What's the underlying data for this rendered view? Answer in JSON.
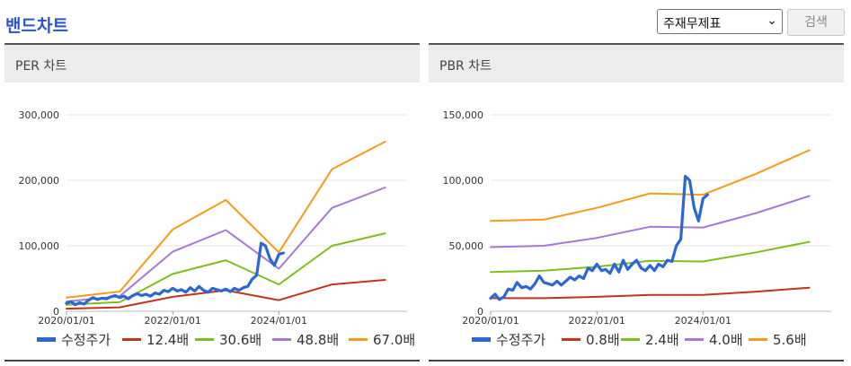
{
  "header": {
    "title": "밴드차트"
  },
  "controls": {
    "select_value": "주재무제표",
    "select_arrow": "⌄",
    "search_label": "검색"
  },
  "panels": [
    {
      "title": "PER 차트"
    },
    {
      "title": "PBR 차트"
    }
  ],
  "chart_data": [
    {
      "type": "line",
      "title": "PER 차트",
      "x_axis": {
        "type": "date",
        "min": "2020/01/01",
        "max": "2026/06/01",
        "tick_labels": [
          "2020/01/01",
          "2022/01/01",
          "2024/01/01"
        ]
      },
      "y_axis": {
        "min": 0,
        "max": 300000,
        "tick_values": [
          0,
          100000,
          200000,
          300000
        ],
        "tick_labels": [
          "0",
          "100,000",
          "200,000",
          "300,000"
        ]
      },
      "grid": "horizontal",
      "legend_position": "bottom",
      "series": [
        {
          "name": "수정주가",
          "color": "#2a66d6",
          "points": [
            [
              "2020/01/01",
              12000
            ],
            [
              "2020/02/01",
              15000
            ],
            [
              "2020/03/01",
              10000
            ],
            [
              "2020/04/01",
              13000
            ],
            [
              "2020/05/01",
              11000
            ],
            [
              "2020/06/01",
              17000
            ],
            [
              "2020/07/01",
              21000
            ],
            [
              "2020/08/01",
              18000
            ],
            [
              "2020/09/01",
              20000
            ],
            [
              "2020/10/01",
              19000
            ],
            [
              "2020/11/01",
              22000
            ],
            [
              "2020/12/01",
              24000
            ],
            [
              "2021/01/01",
              21000
            ],
            [
              "2021/02/01",
              23000
            ],
            [
              "2021/03/01",
              19000
            ],
            [
              "2021/04/01",
              24000
            ],
            [
              "2021/05/01",
              27000
            ],
            [
              "2021/06/01",
              24000
            ],
            [
              "2021/07/01",
              26000
            ],
            [
              "2021/08/01",
              23000
            ],
            [
              "2021/09/01",
              28000
            ],
            [
              "2021/10/01",
              26000
            ],
            [
              "2021/11/01",
              32000
            ],
            [
              "2021/12/01",
              30000
            ],
            [
              "2022/01/01",
              35000
            ],
            [
              "2022/02/01",
              31000
            ],
            [
              "2022/03/01",
              33000
            ],
            [
              "2022/04/01",
              29000
            ],
            [
              "2022/05/01",
              36000
            ],
            [
              "2022/06/01",
              31000
            ],
            [
              "2022/07/01",
              38000
            ],
            [
              "2022/08/01",
              32000
            ],
            [
              "2022/09/01",
              29000
            ],
            [
              "2022/10/01",
              35000
            ],
            [
              "2022/11/01",
              33000
            ],
            [
              "2022/12/01",
              31000
            ],
            [
              "2023/01/01",
              34000
            ],
            [
              "2023/02/01",
              30000
            ],
            [
              "2023/03/01",
              35000
            ],
            [
              "2023/04/01",
              32000
            ],
            [
              "2023/05/01",
              36000
            ],
            [
              "2023/06/01",
              38000
            ],
            [
              "2023/07/01",
              49000
            ],
            [
              "2023/08/01",
              55000
            ],
            [
              "2023/09/01",
              104000
            ],
            [
              "2023/10/01",
              100000
            ],
            [
              "2023/11/01",
              80000
            ],
            [
              "2023/12/01",
              70000
            ],
            [
              "2024/01/01",
              87000
            ],
            [
              "2024/02/01",
              89000
            ]
          ]
        },
        {
          "name": "12.4배",
          "color": "#c0341d",
          "points": [
            [
              "2020/01/01",
              4000
            ],
            [
              "2021/01/01",
              6000
            ],
            [
              "2022/01/01",
              22000
            ],
            [
              "2023/01/01",
              32000
            ],
            [
              "2024/01/01",
              17000
            ],
            [
              "2025/01/01",
              41000
            ],
            [
              "2026/01/01",
              48000
            ]
          ]
        },
        {
          "name": "30.6배",
          "color": "#7cbf1e",
          "points": [
            [
              "2020/01/01",
              10000
            ],
            [
              "2021/01/01",
              14000
            ],
            [
              "2022/01/01",
              57000
            ],
            [
              "2023/01/01",
              78000
            ],
            [
              "2024/01/01",
              41000
            ],
            [
              "2025/01/01",
              100000
            ],
            [
              "2026/01/01",
              119000
            ]
          ]
        },
        {
          "name": "48.8배",
          "color": "#a579d6",
          "points": [
            [
              "2020/01/01",
              15000
            ],
            [
              "2021/01/01",
              23000
            ],
            [
              "2022/01/01",
              91000
            ],
            [
              "2023/01/01",
              124000
            ],
            [
              "2024/01/01",
              65000
            ],
            [
              "2025/01/01",
              158000
            ],
            [
              "2026/01/01",
              189000
            ]
          ]
        },
        {
          "name": "67.0배",
          "color": "#f59b1b",
          "points": [
            [
              "2020/01/01",
              21000
            ],
            [
              "2021/01/01",
              30000
            ],
            [
              "2022/01/01",
              125000
            ],
            [
              "2023/01/01",
              170000
            ],
            [
              "2024/01/01",
              90000
            ],
            [
              "2025/01/01",
              217000
            ],
            [
              "2026/01/01",
              259000
            ]
          ]
        }
      ]
    },
    {
      "type": "line",
      "title": "PBR 차트",
      "x_axis": {
        "type": "date",
        "min": "2020/01/01",
        "max": "2026/06/01",
        "tick_labels": [
          "2020/01/01",
          "2022/01/01",
          "2024/01/01"
        ]
      },
      "y_axis": {
        "min": 0,
        "max": 150000,
        "tick_values": [
          0,
          50000,
          100000,
          150000
        ],
        "tick_labels": [
          "0",
          "50,000",
          "100,000",
          "150,000"
        ]
      },
      "grid": "horizontal",
      "legend_position": "bottom",
      "series": [
        {
          "name": "수정주가",
          "color": "#2a66d6",
          "points": [
            [
              "2020/01/01",
              10000
            ],
            [
              "2020/02/01",
              13000
            ],
            [
              "2020/03/01",
              9000
            ],
            [
              "2020/04/01",
              11000
            ],
            [
              "2020/05/01",
              17000
            ],
            [
              "2020/06/01",
              16000
            ],
            [
              "2020/07/01",
              22000
            ],
            [
              "2020/08/01",
              18000
            ],
            [
              "2020/09/01",
              19000
            ],
            [
              "2020/10/01",
              17000
            ],
            [
              "2020/11/01",
              21000
            ],
            [
              "2020/12/01",
              27000
            ],
            [
              "2021/01/01",
              22000
            ],
            [
              "2021/02/01",
              21000
            ],
            [
              "2021/03/01",
              20000
            ],
            [
              "2021/04/01",
              23000
            ],
            [
              "2021/05/01",
              20000
            ],
            [
              "2021/06/01",
              23000
            ],
            [
              "2021/07/01",
              26000
            ],
            [
              "2021/08/01",
              24000
            ],
            [
              "2021/09/01",
              27000
            ],
            [
              "2021/10/01",
              25000
            ],
            [
              "2021/11/01",
              33000
            ],
            [
              "2021/12/01",
              31000
            ],
            [
              "2022/01/01",
              36000
            ],
            [
              "2022/02/01",
              31000
            ],
            [
              "2022/03/01",
              32000
            ],
            [
              "2022/04/01",
              29000
            ],
            [
              "2022/05/01",
              36000
            ],
            [
              "2022/06/01",
              30000
            ],
            [
              "2022/07/01",
              39000
            ],
            [
              "2022/08/01",
              32000
            ],
            [
              "2022/09/01",
              36000
            ],
            [
              "2022/10/01",
              39000
            ],
            [
              "2022/11/01",
              33000
            ],
            [
              "2022/12/01",
              31000
            ],
            [
              "2023/01/01",
              35000
            ],
            [
              "2023/02/01",
              31000
            ],
            [
              "2023/03/01",
              36000
            ],
            [
              "2023/04/01",
              34000
            ],
            [
              "2023/05/01",
              39000
            ],
            [
              "2023/06/01",
              38000
            ],
            [
              "2023/07/01",
              50000
            ],
            [
              "2023/08/01",
              55000
            ],
            [
              "2023/09/01",
              103000
            ],
            [
              "2023/10/01",
              100000
            ],
            [
              "2023/11/01",
              79000
            ],
            [
              "2023/12/01",
              69000
            ],
            [
              "2024/01/01",
              86000
            ],
            [
              "2024/02/01",
              89000
            ]
          ]
        },
        {
          "name": "0.8배",
          "color": "#c0341d",
          "points": [
            [
              "2020/01/01",
              10000
            ],
            [
              "2021/01/01",
              10000
            ],
            [
              "2022/01/01",
              11000
            ],
            [
              "2023/01/01",
              12500
            ],
            [
              "2024/01/01",
              12500
            ],
            [
              "2025/01/01",
              15000
            ],
            [
              "2026/01/01",
              18000
            ]
          ]
        },
        {
          "name": "2.4배",
          "color": "#7cbf1e",
          "points": [
            [
              "2020/01/01",
              30000
            ],
            [
              "2021/01/01",
              31000
            ],
            [
              "2022/01/01",
              34000
            ],
            [
              "2023/01/01",
              38500
            ],
            [
              "2024/01/01",
              38000
            ],
            [
              "2025/01/01",
              45000
            ],
            [
              "2026/01/01",
              53000
            ]
          ]
        },
        {
          "name": "4.0배",
          "color": "#a579d6",
          "points": [
            [
              "2020/01/01",
              49000
            ],
            [
              "2021/01/01",
              50000
            ],
            [
              "2022/01/01",
              56000
            ],
            [
              "2023/01/01",
              64500
            ],
            [
              "2024/01/01",
              64000
            ],
            [
              "2025/01/01",
              75000
            ],
            [
              "2026/01/01",
              88000
            ]
          ]
        },
        {
          "name": "5.6배",
          "color": "#f59b1b",
          "points": [
            [
              "2020/01/01",
              69000
            ],
            [
              "2021/01/01",
              70000
            ],
            [
              "2022/01/01",
              79000
            ],
            [
              "2023/01/01",
              90000
            ],
            [
              "2024/01/01",
              89000
            ],
            [
              "2025/01/01",
              105000
            ],
            [
              "2026/01/01",
              123000
            ]
          ]
        }
      ]
    }
  ]
}
